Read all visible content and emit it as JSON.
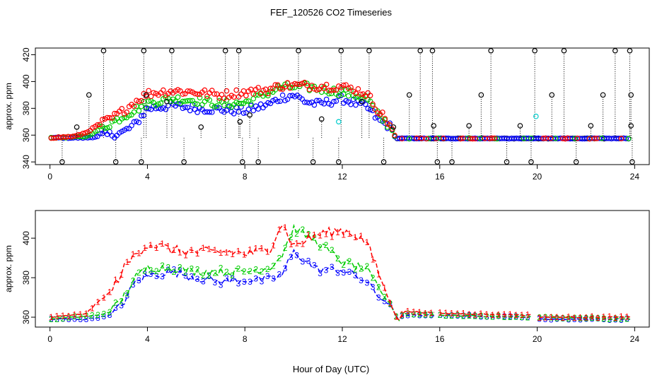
{
  "title": "FEF_120526  CO2 Timeseries",
  "xlabel": "Hour of Day (UTC)",
  "colors": {
    "line1": "#ff0000",
    "line2": "#00cc00",
    "line3": "#0000ff",
    "pt_black": "#000000",
    "pt_cyan": "#00cccc"
  },
  "chart_data": [
    {
      "type": "scatter",
      "name": "top-panel",
      "ylabel": "approx. ppm",
      "xlim": [
        -0.6,
        24.6
      ],
      "ylim": [
        338,
        425
      ],
      "xticks": [
        0,
        4,
        8,
        12,
        16,
        20,
        24
      ],
      "yticks": [
        340,
        360,
        380,
        400,
        420
      ],
      "ytick_labels": [
        "340",
        "360",
        "380",
        "400",
        "420"
      ],
      "series": [
        {
          "name": "red",
          "color": "#ff0000",
          "knots": [
            [
              0,
              358
            ],
            [
              1,
              359
            ],
            [
              1.5,
              362
            ],
            [
              2,
              368
            ],
            [
              2.5,
              372
            ],
            [
              3,
              378
            ],
            [
              3.5,
              385
            ],
            [
              4,
              391
            ],
            [
              5,
              393
            ],
            [
              6,
              392
            ],
            [
              7,
              390
            ],
            [
              8,
              392
            ],
            [
              9,
              394
            ],
            [
              9.5,
              397
            ],
            [
              10.5,
              397
            ],
            [
              12,
              396
            ],
            [
              12.5,
              394
            ],
            [
              13,
              391
            ],
            [
              13.5,
              378
            ],
            [
              14,
              367
            ],
            [
              14.2,
              357
            ]
          ]
        },
        {
          "name": "green",
          "color": "#00cc00",
          "knots": [
            [
              0,
              358
            ],
            [
              1.5,
              359
            ],
            [
              2,
              364
            ],
            [
              3,
              374
            ],
            [
              4,
              384
            ],
            [
              5,
              387
            ],
            [
              6,
              386
            ],
            [
              7,
              383
            ],
            [
              8,
              384
            ],
            [
              9,
              392
            ],
            [
              9.5,
              396
            ],
            [
              10.5,
              396
            ],
            [
              12,
              392
            ],
            [
              13,
              388
            ],
            [
              13.5,
              374
            ],
            [
              14,
              366
            ],
            [
              14.2,
              357
            ]
          ]
        },
        {
          "name": "blue",
          "color": "#0000ff",
          "knots": [
            [
              0,
              358
            ],
            [
              1.5,
              358
            ],
            [
              2,
              359
            ],
            [
              3,
              362
            ],
            [
              3.5,
              368
            ],
            [
              4,
              380
            ],
            [
              5,
              382
            ],
            [
              6,
              380
            ],
            [
              7,
              379
            ],
            [
              8,
              378
            ],
            [
              9,
              383
            ],
            [
              9.5,
              388
            ],
            [
              10,
              390
            ],
            [
              10.5,
              385
            ],
            [
              11,
              383
            ],
            [
              12,
              387
            ],
            [
              13,
              381
            ],
            [
              13.5,
              371
            ],
            [
              14,
              366
            ],
            [
              14.2,
              357
            ]
          ]
        },
        {
          "name": "black",
          "color": "#000000",
          "knots": [
            [
              0,
              358
            ],
            [
              14,
              358
            ]
          ]
        }
      ],
      "spikes_up": [
        2.2,
        3.85,
        5.0,
        7.2,
        7.75,
        10.2,
        11.95,
        13.1,
        15.2,
        15.7,
        18.1,
        19.9,
        21.1,
        23.2,
        23.8
      ],
      "spikes_down": [
        0.5,
        2.7,
        3.75,
        5.5,
        7.9,
        8.55,
        10.8,
        11.85,
        13.7,
        15.9,
        16.5,
        18.75,
        19.75,
        21.6,
        23.9
      ],
      "mid_markers": [
        [
          1.1,
          366
        ],
        [
          1.6,
          390
        ],
        [
          3.95,
          390
        ],
        [
          4.8,
          385
        ],
        [
          6.2,
          366
        ],
        [
          7.8,
          370
        ],
        [
          8.2,
          375
        ],
        [
          11.15,
          372
        ],
        [
          12.8,
          385
        ],
        [
          14.1,
          366
        ],
        [
          14.75,
          390
        ],
        [
          15.75,
          367
        ],
        [
          17.2,
          367
        ],
        [
          17.7,
          390
        ],
        [
          19.3,
          367
        ],
        [
          20.6,
          390
        ],
        [
          22.2,
          367
        ],
        [
          22.7,
          390
        ],
        [
          23.85,
          367
        ],
        [
          23.85,
          390
        ]
      ],
      "cyan_markers": [
        [
          11.85,
          370
        ],
        [
          19.95,
          374
        ]
      ]
    },
    {
      "type": "line",
      "name": "bottom-panel",
      "ylabel": "approx. ppm",
      "xlim": [
        -0.6,
        24.6
      ],
      "ylim": [
        355,
        414
      ],
      "xticks": [
        0,
        4,
        8,
        12,
        16,
        20,
        24
      ],
      "yticks": [
        360,
        380,
        400
      ],
      "ytick_labels": [
        "360",
        "380",
        "400"
      ],
      "series": [
        {
          "name": "1",
          "color": "#ff0000",
          "knots": [
            [
              0,
              360
            ],
            [
              1,
              361
            ],
            [
              1.5,
              362
            ],
            [
              2,
              368
            ],
            [
              2.5,
              373
            ],
            [
              3,
              384
            ],
            [
              3.5,
              392
            ],
            [
              4,
              397
            ],
            [
              4.5,
              396
            ],
            [
              5,
              394
            ],
            [
              6,
              393
            ],
            [
              7,
              393
            ],
            [
              7.5,
              393
            ],
            [
              8,
              392
            ],
            [
              9,
              394
            ],
            [
              9.5,
              408
            ],
            [
              10,
              396
            ],
            [
              11,
              402
            ],
            [
              12,
              404
            ],
            [
              12.5,
              402
            ],
            [
              13,
              398
            ],
            [
              13.5,
              382
            ],
            [
              14,
              366
            ],
            [
              14.3,
              358
            ],
            [
              14.5,
              363
            ],
            [
              16,
              362
            ],
            [
              19.8,
              361
            ],
            [
              20,
              360
            ],
            [
              23.8,
              360
            ]
          ]
        },
        {
          "name": "2",
          "color": "#00cc00",
          "knots": [
            [
              0,
              359
            ],
            [
              1,
              360
            ],
            [
              2,
              361
            ],
            [
              2.5,
              363
            ],
            [
              3,
              370
            ],
            [
              3.5,
              380
            ],
            [
              4,
              385
            ],
            [
              5,
              385
            ],
            [
              6,
              383
            ],
            [
              7,
              383
            ],
            [
              8,
              383
            ],
            [
              9,
              385
            ],
            [
              9.5,
              391
            ],
            [
              10,
              405
            ],
            [
              11,
              398
            ],
            [
              12,
              388
            ],
            [
              13,
              384
            ],
            [
              13.5,
              374
            ],
            [
              14,
              366
            ],
            [
              14.3,
              358
            ],
            [
              14.5,
              362
            ],
            [
              16,
              361
            ],
            [
              19.8,
              360
            ],
            [
              20,
              360
            ],
            [
              23.8,
              359
            ]
          ]
        },
        {
          "name": "3",
          "color": "#0000ff",
          "knots": [
            [
              0,
              359
            ],
            [
              1.5,
              359
            ],
            [
              2,
              360
            ],
            [
              2.5,
              361
            ],
            [
              3,
              367
            ],
            [
              3.5,
              378
            ],
            [
              4,
              381
            ],
            [
              5,
              383
            ],
            [
              6,
              380
            ],
            [
              7,
              378
            ],
            [
              8,
              379
            ],
            [
              9,
              379
            ],
            [
              9.5,
              381
            ],
            [
              10,
              393
            ],
            [
              11,
              384
            ],
            [
              12,
              384
            ],
            [
              13,
              378
            ],
            [
              13.5,
              370
            ],
            [
              14,
              366
            ],
            [
              14.3,
              358
            ],
            [
              14.5,
              361
            ],
            [
              16,
              361
            ],
            [
              19.8,
              360
            ],
            [
              20,
              359
            ],
            [
              23.8,
              359
            ]
          ]
        }
      ],
      "gaps": [
        [
          15.8,
          16.0
        ],
        [
          19.8,
          20.0
        ]
      ]
    }
  ]
}
